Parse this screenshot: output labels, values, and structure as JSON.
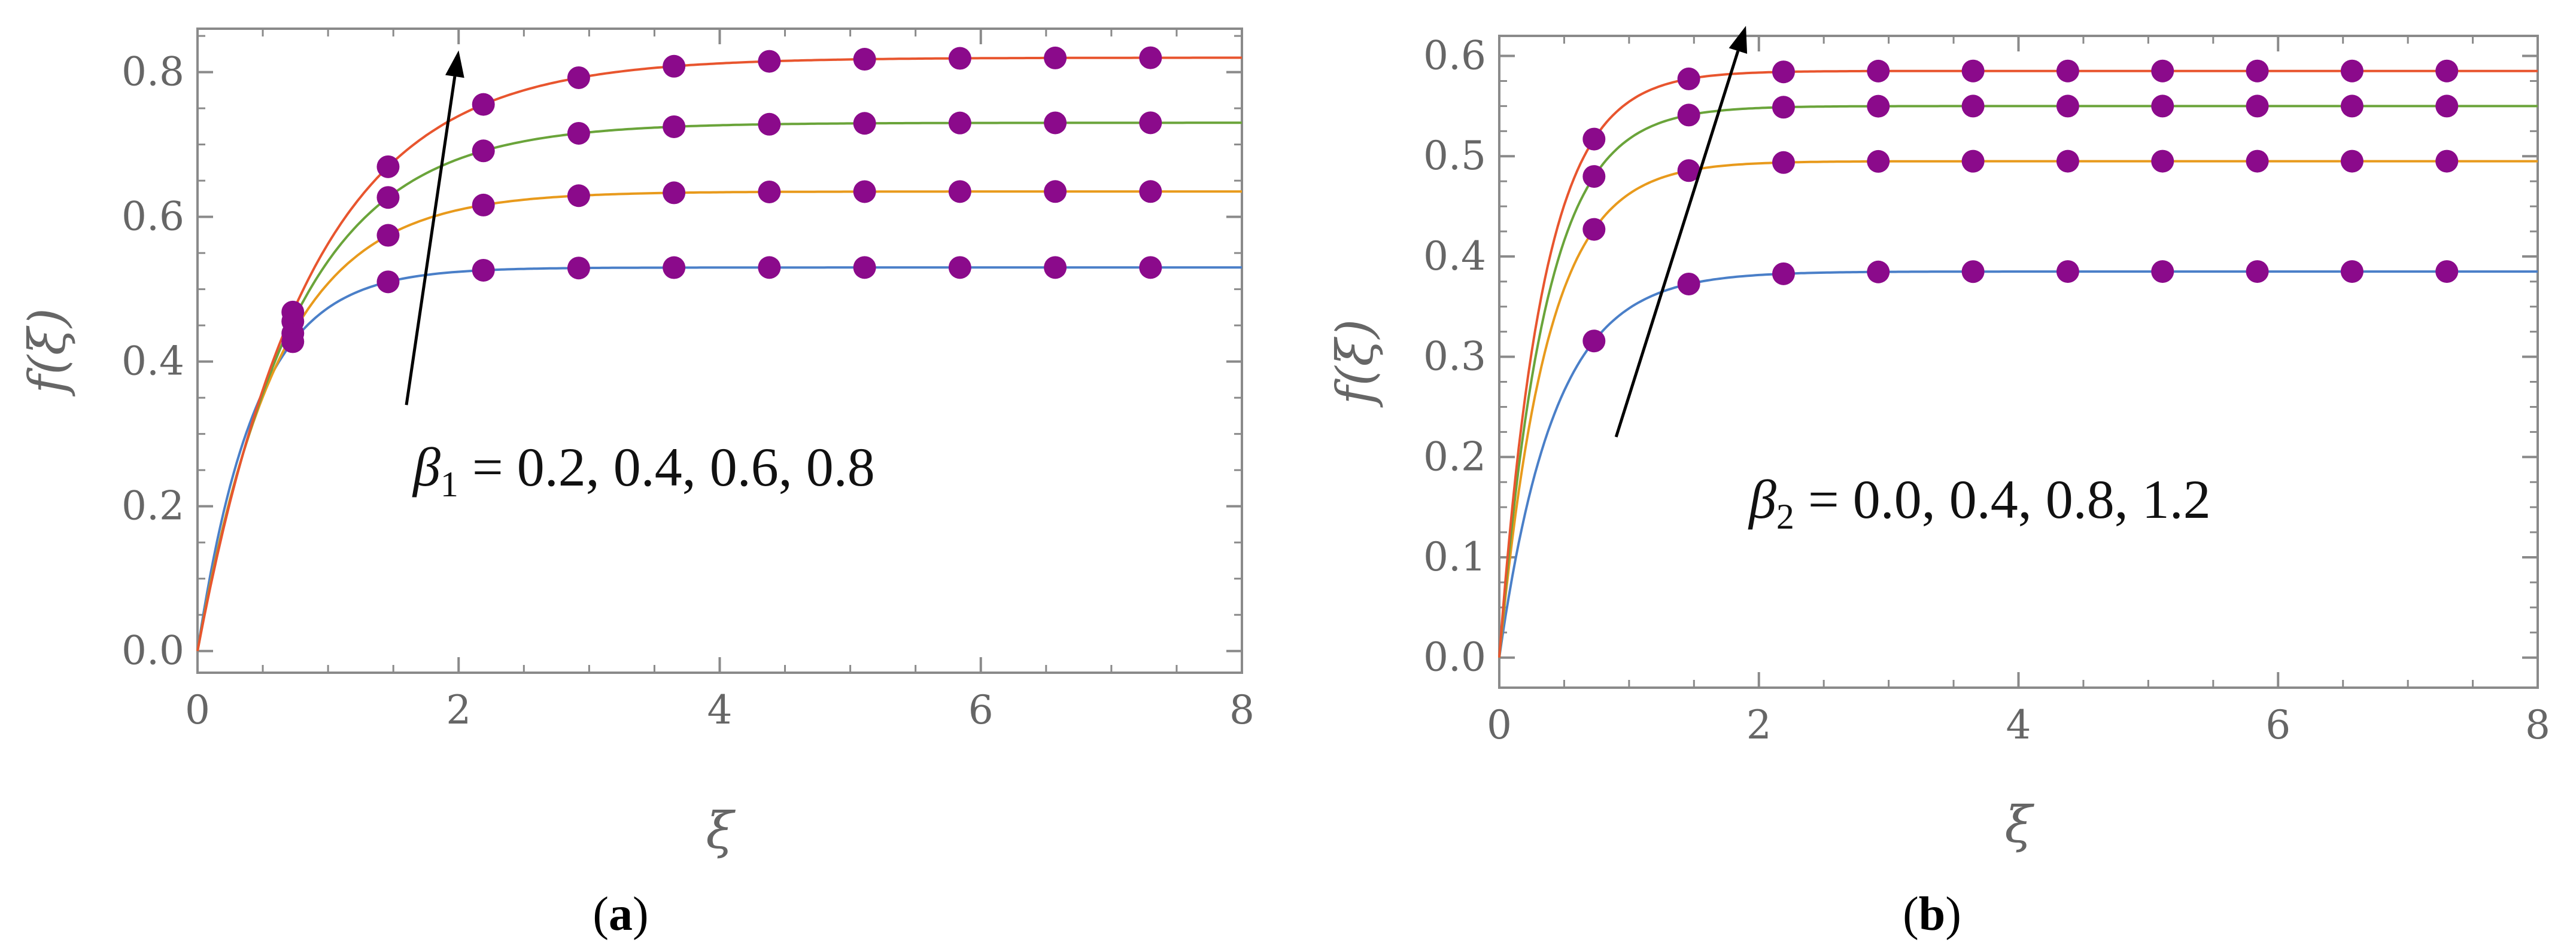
{
  "chart_data": [
    {
      "type": "line",
      "panel_label": "(a)",
      "panel_letter": "a",
      "xlabel": "ξ",
      "ylabel": "f(ξ)",
      "xlim": [
        0,
        8
      ],
      "ylim": [
        -0.03,
        0.86
      ],
      "xticks": [
        0,
        2,
        4,
        6,
        8
      ],
      "xtick_labels": [
        "0",
        "2",
        "4",
        "6",
        "8"
      ],
      "yticks": [
        0.0,
        0.2,
        0.4,
        0.6,
        0.8
      ],
      "ytick_labels": [
        "0.0",
        "0.2",
        "0.4",
        "0.6",
        "0.8"
      ],
      "annotation_greek": "β",
      "annotation_subscript": "1",
      "annotation_values": " = 0.2, 0.4, 0.6, 0.8",
      "arrow": {
        "from": [
          1.6,
          0.34
        ],
        "to": [
          2.0,
          0.83
        ]
      },
      "marker_color": "#8b0a8b",
      "marker_x": [
        0.73,
        1.46,
        2.19,
        2.92,
        3.65,
        4.38,
        5.11,
        5.84,
        6.57,
        7.3
      ],
      "series": [
        {
          "name": "0.2",
          "color": "#4a7fc8",
          "asymptote": 0.53,
          "rate": 2.25
        },
        {
          "name": "0.4",
          "color": "#e89a1c",
          "asymptote": 0.635,
          "rate": 1.61
        },
        {
          "name": "0.6",
          "color": "#6aa43a",
          "asymptote": 0.73,
          "rate": 1.34
        },
        {
          "name": "0.8",
          "color": "#e8552e",
          "asymptote": 0.82,
          "rate": 1.16
        }
      ]
    },
    {
      "type": "line",
      "panel_label": "(b)",
      "panel_letter": "b",
      "xlabel": "ξ",
      "ylabel": "f(ξ)",
      "xlim": [
        0,
        8
      ],
      "ylim": [
        -0.03,
        0.62
      ],
      "xticks": [
        0,
        2,
        4,
        6,
        8
      ],
      "xtick_labels": [
        "0",
        "2",
        "4",
        "6",
        "8"
      ],
      "yticks": [
        0.0,
        0.1,
        0.2,
        0.3,
        0.4,
        0.5,
        0.6
      ],
      "ytick_labels": [
        "0.0",
        "0.1",
        "0.2",
        "0.3",
        "0.4",
        "0.5",
        "0.6"
      ],
      "annotation_greek": "β",
      "annotation_subscript": "2",
      "annotation_values": " = 0.0, 0.4, 0.8, 1.2",
      "arrow": {
        "from": [
          0.9,
          0.22
        ],
        "to": [
          1.9,
          0.63
        ]
      },
      "marker_color": "#8b0a8b",
      "marker_x": [
        0.73,
        1.46,
        2.19,
        2.92,
        3.65,
        4.38,
        5.11,
        5.84,
        6.57,
        7.3
      ],
      "series": [
        {
          "name": "0.0",
          "color": "#4a7fc8",
          "asymptote": 0.385,
          "rate": 2.35
        },
        {
          "name": "0.4",
          "color": "#e89a1c",
          "asymptote": 0.495,
          "rate": 2.72
        },
        {
          "name": "0.8",
          "color": "#6aa43a",
          "asymptote": 0.55,
          "rate": 2.82
        },
        {
          "name": "1.2",
          "color": "#e8552e",
          "asymptote": 0.585,
          "rate": 2.95
        }
      ]
    }
  ]
}
